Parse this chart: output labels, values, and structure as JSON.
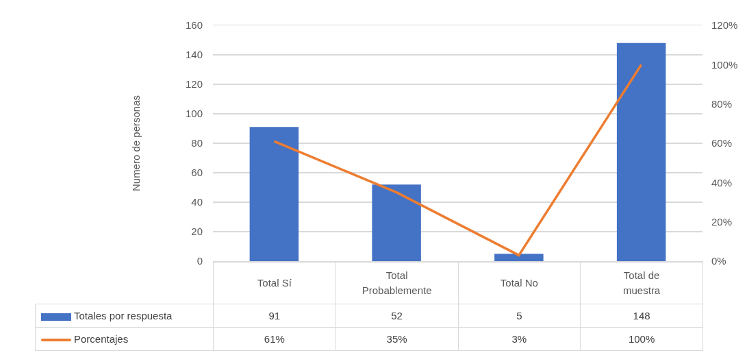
{
  "chart_data": {
    "type": "bar",
    "categories": [
      "Total Sí",
      "Total Probablemente",
      "Total No",
      "Total de muestra"
    ],
    "ylabel": "Numero de personas",
    "series": [
      {
        "name": "Totales por respuesta",
        "color": "#4472c4",
        "values": [
          91,
          52,
          5,
          148
        ],
        "value_labels": [
          "91",
          "52",
          "5",
          "148"
        ]
      },
      {
        "name": "Porcentajes",
        "type": "line",
        "axis": "y2",
        "color": "#ed7d31",
        "values": [
          61,
          35,
          3,
          100
        ],
        "value_labels": [
          "61%",
          "35%",
          "3%",
          "100%"
        ]
      }
    ],
    "ylim": [
      0,
      160
    ],
    "yticks": [
      0,
      20,
      40,
      60,
      80,
      100,
      120,
      140,
      160
    ],
    "y2lim": [
      0,
      120
    ],
    "y2ticks": [
      {
        "value": 0,
        "label": "0%"
      },
      {
        "value": 20,
        "label": "20%"
      },
      {
        "value": 40,
        "label": "40%"
      },
      {
        "value": 60,
        "label": "60%"
      },
      {
        "value": 80,
        "label": "80%"
      },
      {
        "value": 100,
        "label": "100%"
      },
      {
        "value": 120,
        "label": "120%"
      }
    ],
    "grid": "y",
    "legend": "bottom",
    "marker": "none",
    "line_style": "solid"
  }
}
